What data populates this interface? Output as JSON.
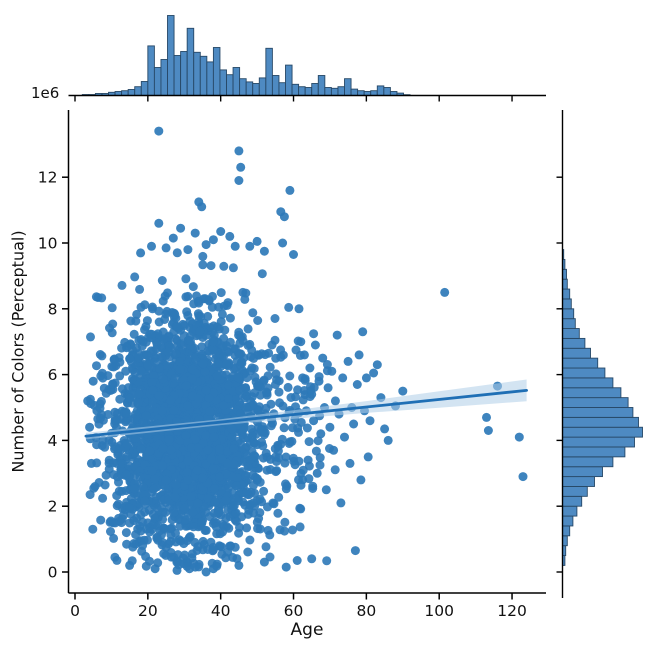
{
  "chart_data": {
    "type": "scatter",
    "subtype": "jointplot-with-marginal-histograms-and-regression",
    "title": "",
    "xlabel": "Age",
    "ylabel": "Number of Colors (Perceptual)",
    "y_offset_label": "1e6",
    "xlim": [
      -2,
      129
    ],
    "ylim": [
      -0.65,
      14.1
    ],
    "x_ticks": [
      0,
      20,
      40,
      60,
      80,
      100,
      120
    ],
    "y_ticks": [
      0,
      2,
      4,
      6,
      8,
      10,
      12
    ],
    "grid": false,
    "legend": "none",
    "regression": {
      "x_start": 3,
      "y_start": 4.13,
      "x_end": 124,
      "y_end": 5.52,
      "ci_halfwidth": [
        [
          3,
          0.1
        ],
        [
          40,
          0.09
        ],
        [
          60,
          0.13
        ],
        [
          80,
          0.18
        ],
        [
          100,
          0.25
        ],
        [
          124,
          0.33
        ]
      ]
    },
    "scatter_cloud": {
      "description": "dense cloud of ~3000 points, ages 4-62, colors 0-9.7e6, peak density near age 31, colors 4.2e6",
      "seed": 20,
      "clusters": [
        {
          "n": 2500,
          "x_mean": 31,
          "x_sd": 10.5,
          "y_mean": 4.25,
          "y_sd": 1.65,
          "x_min": 4,
          "x_max": 61.5,
          "y_min": 0.15,
          "y_max": 9.6
        },
        {
          "n": 300,
          "x_mean": 33,
          "x_sd": 14.0,
          "y_mean": 4.2,
          "y_sd": 2.3,
          "x_min": 3.5,
          "x_max": 63.0,
          "y_min": 0.05,
          "y_max": 10.0
        },
        {
          "n": 40,
          "x_mean": 64,
          "x_sd": 5.0,
          "y_mean": 4.6,
          "y_sd": 1.5,
          "x_min": 60,
          "x_max": 72.0,
          "y_min": 0.3,
          "y_max": 8.0
        }
      ]
    },
    "scatter_outliers": [
      [
        23,
        13.4
      ],
      [
        45,
        12.8
      ],
      [
        45.5,
        12.3
      ],
      [
        45,
        11.9
      ],
      [
        34,
        11.25
      ],
      [
        34.8,
        11.1
      ],
      [
        59,
        11.6
      ],
      [
        56.5,
        10.95
      ],
      [
        57.5,
        10.8
      ],
      [
        23,
        10.6
      ],
      [
        29,
        10.45
      ],
      [
        33,
        10.3
      ],
      [
        42.5,
        10.2
      ],
      [
        27,
        10.15
      ],
      [
        38,
        10.1
      ],
      [
        50,
        10.05
      ],
      [
        57,
        10.0
      ],
      [
        40,
        10.35
      ],
      [
        36,
        9.95
      ],
      [
        44,
        9.9
      ],
      [
        25,
        9.85
      ],
      [
        31,
        9.8
      ],
      [
        52,
        9.75
      ],
      [
        48,
        9.9
      ],
      [
        21,
        9.9
      ],
      [
        18,
        9.7
      ],
      [
        60,
        9.65
      ],
      [
        61.5,
        8.0
      ],
      [
        62,
        7.0
      ],
      [
        62.5,
        5.9
      ],
      [
        63,
        6.6
      ],
      [
        63.5,
        4.9
      ],
      [
        64,
        3.4
      ],
      [
        64.5,
        6.2
      ],
      [
        65,
        5.4
      ],
      [
        65,
        0.4
      ],
      [
        65.5,
        4.6
      ],
      [
        66,
        6.9
      ],
      [
        66.5,
        3.0
      ],
      [
        67,
        5.8
      ],
      [
        67.5,
        4.2
      ],
      [
        68,
        6.5
      ],
      [
        68.5,
        5.0
      ],
      [
        69,
        2.5
      ],
      [
        69.5,
        5.6
      ],
      [
        70,
        4.4
      ],
      [
        70.5,
        6.1
      ],
      [
        71,
        3.7
      ],
      [
        71.5,
        5.2
      ],
      [
        72,
        7.2
      ],
      [
        72.5,
        4.8
      ],
      [
        73,
        2.1
      ],
      [
        73.5,
        5.9
      ],
      [
        74,
        4.1
      ],
      [
        75,
        6.4
      ],
      [
        75.5,
        3.3
      ],
      [
        76,
        5.0
      ],
      [
        76.5,
        4.5
      ],
      [
        77,
        0.65
      ],
      [
        77.5,
        5.7
      ],
      [
        78,
        6.6
      ],
      [
        78.5,
        2.8
      ],
      [
        79,
        7.3
      ],
      [
        79.5,
        4.9
      ],
      [
        80,
        5.9
      ],
      [
        80.5,
        3.5
      ],
      [
        81,
        4.6
      ],
      [
        82,
        6.05
      ],
      [
        83,
        6.3
      ],
      [
        84,
        5.3
      ],
      [
        85,
        4.35
      ],
      [
        86,
        4.0
      ],
      [
        88,
        5.05
      ],
      [
        90,
        5.5
      ],
      [
        101.5,
        8.5
      ],
      [
        113,
        4.7
      ],
      [
        113.5,
        4.3
      ],
      [
        116,
        5.65
      ],
      [
        122,
        4.1
      ],
      [
        123,
        2.9
      ],
      [
        15,
        0.2
      ],
      [
        22,
        0.1
      ],
      [
        28,
        0.05
      ],
      [
        33,
        0.15
      ],
      [
        36,
        0.0
      ],
      [
        38,
        0.1
      ],
      [
        45,
        0.2
      ],
      [
        52,
        0.3
      ],
      [
        58,
        0.15
      ],
      [
        61,
        0.35
      ],
      [
        3.5,
        5.2
      ],
      [
        4,
        4.4
      ],
      [
        4.5,
        3.3
      ],
      [
        5,
        5.8
      ],
      [
        5.5,
        2.6
      ],
      [
        6,
        4.9
      ],
      [
        4.2,
        4.05
      ]
    ],
    "marginal_top": {
      "type": "bar",
      "axis": "Age",
      "bin_start": 2,
      "bin_width": 1.8,
      "heights_rel": [
        0.012,
        0.012,
        0.025,
        0.025,
        0.04,
        0.05,
        0.06,
        0.075,
        0.11,
        0.175,
        0.62,
        0.35,
        0.45,
        1.0,
        0.5,
        0.55,
        0.84,
        0.54,
        0.49,
        0.42,
        0.6,
        0.32,
        0.26,
        0.35,
        0.21,
        0.17,
        0.15,
        0.22,
        0.59,
        0.25,
        0.16,
        0.38,
        0.14,
        0.11,
        0.1,
        0.15,
        0.25,
        0.1,
        0.09,
        0.11,
        0.21,
        0.08,
        0.06,
        0.05,
        0.06,
        0.12,
        0.1,
        0.05,
        0.03,
        0.01
      ]
    },
    "marginal_right": {
      "type": "bar",
      "axis": "Number of Colors (Perceptual)",
      "bin_start": 0.2,
      "bin_width": 0.3,
      "lengths_rel": [
        0.03,
        0.04,
        0.06,
        0.09,
        0.13,
        0.18,
        0.24,
        0.31,
        0.4,
        0.5,
        0.63,
        0.78,
        0.9,
        1.0,
        0.95,
        0.88,
        0.82,
        0.73,
        0.63,
        0.53,
        0.44,
        0.35,
        0.28,
        0.21,
        0.16,
        0.14,
        0.11,
        0.09,
        0.06,
        0.05,
        0.03,
        0.015
      ]
    },
    "colors": {
      "dot": "#2e79b8",
      "hist_fill": "#4e8ac2",
      "hist_edge": "#274867",
      "regression_line": "#1f6fb5",
      "ci_band": "#aecde8",
      "axis": "#000000",
      "text": "#111111"
    }
  }
}
